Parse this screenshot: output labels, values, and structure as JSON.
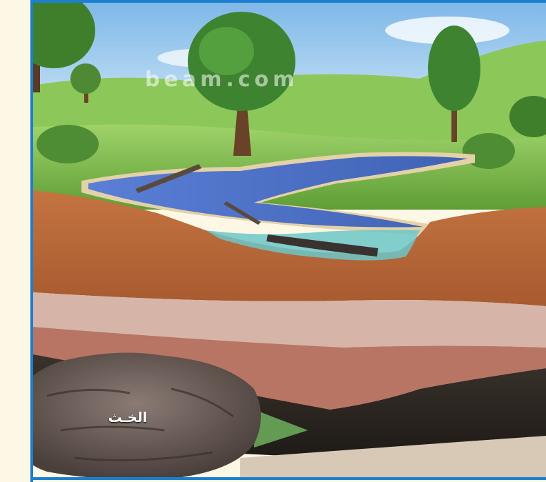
{
  "figure": {
    "peat_label": "الخـث",
    "watermark": "beam.com"
  },
  "colors": {
    "border": "#1c7fd0",
    "sky": "#a9d4ef",
    "grass": "#7fbf4a",
    "water": "#4a6fc0",
    "topsoil": "#b8663a",
    "sand_layer": "#d6b5a8",
    "clay_layer": "#b87563",
    "peat_layer": "#2b2520",
    "gravel": "#d8c9b6"
  }
}
